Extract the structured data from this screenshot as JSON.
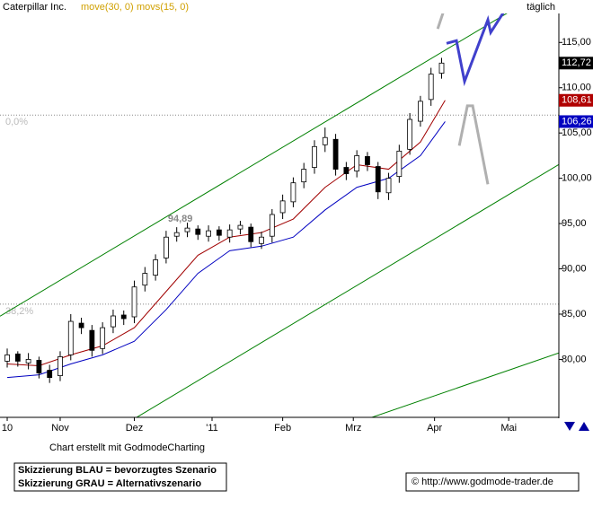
{
  "chart_data": {
    "type": "candlestick",
    "title": "Caterpillar Inc.",
    "timeframe": "täglich",
    "x": [
      0,
      3,
      6,
      9,
      12,
      15,
      18,
      21,
      24,
      27,
      30,
      33,
      36,
      39,
      42,
      45,
      48,
      51,
      54,
      57,
      60,
      63,
      66,
      69,
      72,
      75,
      78,
      81,
      84,
      87,
      90,
      93,
      96,
      99,
      102,
      105,
      108,
      111,
      114,
      117,
      120,
      123
    ],
    "open": [
      79.8,
      80.6,
      79.6,
      79.9,
      78.8,
      78.2,
      80.5,
      84.0,
      83.2,
      81.2,
      83.6,
      84.9,
      84.7,
      88.2,
      89.3,
      91.2,
      93.6,
      94.1,
      94.4,
      93.6,
      94.3,
      93.5,
      94.4,
      94.6,
      92.8,
      93.6,
      96.2,
      97.4,
      99.6,
      101.2,
      103.7,
      104.3,
      101.2,
      100.8,
      102.4,
      101.3,
      98.4,
      100.2,
      103.2,
      106.3,
      108.7,
      111.6
    ],
    "high": [
      81.2,
      80.9,
      80.7,
      80.3,
      79.4,
      80.9,
      85.0,
      84.6,
      83.8,
      84.1,
      85.5,
      85.4,
      88.7,
      90.2,
      91.6,
      94.2,
      94.6,
      95.1,
      94.8,
      94.8,
      94.7,
      94.9,
      95.3,
      95.0,
      94.1,
      96.6,
      98.2,
      100.1,
      101.7,
      104.2,
      105.6,
      104.9,
      101.8,
      103.1,
      102.9,
      101.8,
      100.6,
      103.7,
      107.2,
      109.1,
      112.2,
      113.3
    ],
    "low": [
      79.1,
      79.2,
      78.9,
      77.9,
      77.4,
      77.6,
      79.9,
      82.8,
      80.3,
      80.6,
      82.9,
      83.8,
      84.0,
      87.5,
      88.7,
      90.6,
      93.0,
      93.5,
      93.2,
      93.0,
      93.1,
      92.9,
      93.8,
      92.4,
      92.2,
      92.9,
      95.5,
      96.8,
      98.9,
      100.5,
      102.9,
      100.3,
      99.8,
      100.1,
      100.8,
      97.7,
      97.6,
      99.5,
      102.6,
      105.7,
      108.0,
      111.0
    ],
    "close": [
      80.5,
      79.8,
      80.0,
      78.5,
      78.0,
      80.3,
      84.2,
      83.5,
      81.0,
      83.5,
      84.8,
      84.5,
      88.0,
      89.5,
      91.0,
      93.5,
      94.0,
      94.5,
      93.8,
      94.2,
      93.7,
      94.3,
      94.8,
      93.0,
      93.5,
      96.0,
      97.5,
      99.5,
      101.0,
      103.5,
      104.5,
      101.0,
      100.5,
      102.5,
      101.5,
      98.5,
      100.0,
      103.0,
      106.5,
      108.5,
      111.5,
      112.72
    ],
    "up_color": "#ffffff",
    "down_color": "#000000",
    "series": [
      {
        "name": "move(30, 0)",
        "color": "#a00000",
        "x": [
          0,
          9,
          18,
          27,
          36,
          45,
          54,
          63,
          72,
          81,
          90,
          99,
          108,
          117,
          124
        ],
        "values": [
          79.5,
          79.3,
          80.5,
          81.5,
          83.5,
          87.5,
          91.5,
          93.5,
          94.0,
          95.5,
          99.0,
          101.5,
          101.0,
          104.0,
          108.61
        ]
      },
      {
        "name": "movs(15, 0)",
        "color": "#0000c0",
        "x": [
          0,
          9,
          18,
          27,
          36,
          45,
          54,
          63,
          72,
          81,
          90,
          99,
          108,
          117,
          124
        ],
        "values": [
          78.0,
          78.3,
          79.5,
          80.5,
          82.0,
          85.5,
          89.5,
          92.0,
          92.5,
          93.5,
          96.5,
          99.0,
          100.0,
          102.5,
          106.26
        ]
      }
    ],
    "price_tags": {
      "values": [
        112.72,
        108.61,
        106.26
      ],
      "value_labels": [
        "112,72",
        "108,61",
        "106,26"
      ],
      "colors": [
        "#000000",
        "#b00000",
        "#0000c0"
      ]
    },
    "channel_lines": [
      {
        "color": "#008000",
        "x": [
          -2.04,
          141.7
        ],
        "values": [
          84.77,
          118.27
        ]
      },
      {
        "color": "#008000",
        "x": [
          36.1,
          156.2
        ],
        "values": [
          73.47,
          101.52
        ]
      },
      {
        "color": "#008000",
        "x": [
          102.3,
          156.2
        ],
        "values": [
          73.47,
          80.71
        ]
      }
    ],
    "levels": [
      {
        "value": 106.97,
        "label": "0,0%"
      },
      {
        "value": 86.1,
        "label": "38,2%"
      }
    ],
    "annotations": [
      {
        "x": 49,
        "value": 94.89,
        "label": "94,89"
      }
    ],
    "projections": [
      {
        "color": "#4040cc",
        "x": [
          124.4,
          127.2,
          129.5,
          136.1,
          136.9,
          140.5
        ],
        "values": [
          114.9,
          115.2,
          110.7,
          117.5,
          116.1,
          118.3
        ]
      },
      {
        "color": "#b0b0b0",
        "x": [
          121.9,
          124.2
        ],
        "values": [
          116.5,
          119.2
        ]
      },
      {
        "color": "#b0b0b0",
        "x": [
          128.0,
          130.3,
          131.8,
          136.1
        ],
        "values": [
          103.6,
          108.0,
          108.0,
          99.34
        ]
      }
    ],
    "xlim": [
      -2.04,
      156.2
    ],
    "xticks": [
      {
        "value": 0,
        "label": "10"
      },
      {
        "value": 15,
        "label": "Nov"
      },
      {
        "value": 36,
        "label": "Dez"
      },
      {
        "value": 58,
        "label": "'11"
      },
      {
        "value": 78,
        "label": "Feb"
      },
      {
        "value": 98,
        "label": "Mrz"
      },
      {
        "value": 121,
        "label": "Apr"
      },
      {
        "value": 142,
        "label": "Mai"
      }
    ],
    "ylim": [
      73.6,
      118.2
    ],
    "yticks": [
      {
        "value": 80,
        "label": "80,00"
      },
      {
        "value": 85,
        "label": "85,00"
      },
      {
        "value": 90,
        "label": "90,00"
      },
      {
        "value": 95,
        "label": "95,00"
      },
      {
        "value": 100,
        "label": "100,00"
      },
      {
        "value": 105,
        "label": "105,00"
      },
      {
        "value": 110,
        "label": "110,00"
      },
      {
        "value": 115,
        "label": "115,00"
      }
    ],
    "footer": {
      "credit": "Chart erstellt mit GodmodeCharting",
      "legend_lines": [
        "Skizzierung BLAU = bevorzugtes Szenario",
        "Skizzierung GRAU = Alternativszenario"
      ],
      "copyright": "© http://www.godmode-trader.de"
    }
  }
}
